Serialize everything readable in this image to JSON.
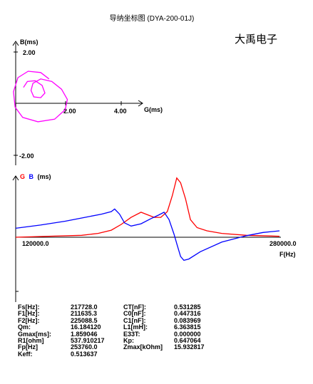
{
  "title": "导纳坐标图 (DYA-200-01J)",
  "brand": "大禹电子",
  "chart_data": [
    {
      "type": "scatter",
      "name": "admittance-circle",
      "xlabel": "G(ms)",
      "ylabel": "B(ms)",
      "xticks": [
        "2.00",
        "4.00"
      ],
      "yticks": [
        "2.00",
        "-2.00"
      ],
      "xlim": [
        -0.25,
        4.8
      ],
      "ylim": [
        -2.45,
        2.45
      ],
      "color": "#ff00ff",
      "points": [
        [
          1.2,
          0.95
        ],
        [
          0.9,
          1.2
        ],
        [
          0.45,
          1.25
        ],
        [
          0.08,
          1.0
        ],
        [
          -0.08,
          0.45
        ],
        [
          -0.02,
          -0.15
        ],
        [
          0.25,
          -0.55
        ],
        [
          0.8,
          -0.72
        ],
        [
          1.4,
          -0.62
        ],
        [
          1.78,
          -0.25
        ],
        [
          1.86,
          0.15
        ],
        [
          1.65,
          0.55
        ],
        [
          1.3,
          0.85
        ],
        [
          0.9,
          0.95
        ],
        [
          0.62,
          0.78
        ],
        [
          0.55,
          0.5
        ],
        [
          0.65,
          0.25
        ],
        [
          0.9,
          0.22
        ],
        [
          1.05,
          0.4
        ],
        [
          0.95,
          0.7
        ],
        [
          0.7,
          0.88
        ],
        [
          0.42,
          0.85
        ],
        [
          0.28,
          0.62
        ]
      ]
    },
    {
      "type": "line",
      "name": "frequency-sweep",
      "xlabel": "F(Hz)",
      "ylabel": "(ms)",
      "legend": [
        "G",
        "B"
      ],
      "xticks": [
        "120000.0",
        "280000.0"
      ],
      "xlim": [
        120000,
        280000
      ],
      "ylim": [
        -0.9,
        2.1
      ],
      "series": [
        {
          "name": "G",
          "color": "#ff0000",
          "x": [
            120000,
            140000,
            160000,
            170000,
            178000,
            184000,
            190000,
            196000,
            200000,
            204000,
            208000,
            212000,
            215000,
            217700,
            220000,
            223000,
            226000,
            230000,
            236000,
            245000,
            260000,
            280000
          ],
          "y": [
            0.0,
            0.03,
            0.06,
            0.12,
            0.22,
            0.4,
            0.62,
            0.78,
            0.7,
            0.62,
            0.62,
            0.8,
            1.3,
            1.85,
            1.7,
            1.2,
            0.55,
            0.3,
            0.2,
            0.12,
            0.06,
            0.03
          ]
        },
        {
          "name": "B",
          "color": "#0000ff",
          "x": [
            120000,
            135000,
            150000,
            162000,
            172000,
            178000,
            180000,
            183000,
            186000,
            190000,
            196000,
            202000,
            207000,
            210000,
            213000,
            216000,
            218000,
            220000,
            222000,
            225000,
            232000,
            245000,
            260000,
            270000,
            280000
          ],
          "y": [
            0.28,
            0.38,
            0.5,
            0.62,
            0.72,
            0.8,
            0.88,
            0.72,
            0.45,
            0.35,
            0.42,
            0.58,
            0.7,
            0.78,
            0.55,
            0.1,
            -0.25,
            -0.6,
            -0.72,
            -0.68,
            -0.45,
            -0.15,
            0.05,
            0.15,
            0.2
          ]
        }
      ]
    }
  ],
  "params": [
    [
      "Fs[Hz]:",
      "217728.0",
      "CT[nF]:",
      "0.531285"
    ],
    [
      "F1[Hz]:",
      "211635.3",
      "C0[nF]:",
      "0.447316"
    ],
    [
      "F2[Hz]:",
      "225088.5",
      "C1[nF]:",
      "0.083969"
    ],
    [
      "Qm:",
      "16.184120",
      "L1[mH]:",
      "6.363815"
    ],
    [
      "Gmax[ms]:",
      "1.859046",
      "E33T:",
      "0.000000"
    ],
    [
      "R1[ohm]",
      "537.910217",
      "Kp:",
      "0.647064"
    ],
    [
      "Fp[Hz]",
      "253760.0",
      "Zmax[kOhm]",
      "15.932817"
    ],
    [
      "Keff:",
      "0.513637",
      "",
      ""
    ]
  ]
}
